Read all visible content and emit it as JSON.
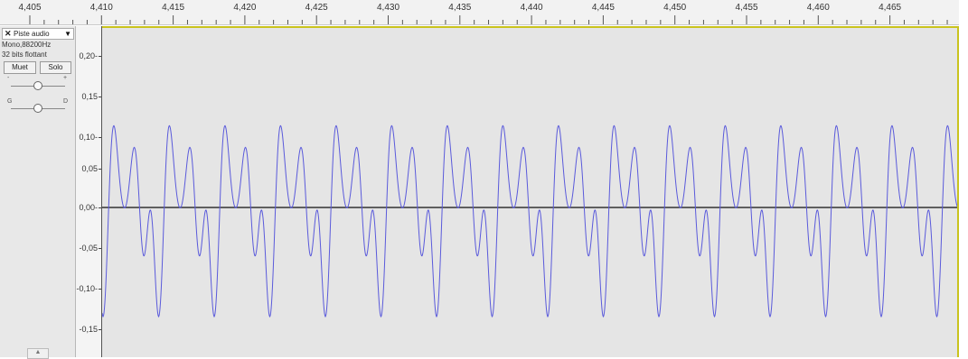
{
  "ruler": {
    "labels": [
      "4,405",
      "4,410",
      "4,415",
      "4,420",
      "4,425",
      "4,430",
      "4,435",
      "4,440",
      "4,445",
      "4,450",
      "4,455",
      "4,460",
      "4,465"
    ]
  },
  "track": {
    "close_icon": "close-icon",
    "name": "Piste audio",
    "menu_icon": "dropdown-arrow-icon",
    "format": "Mono,88200Hz",
    "bits": "32 bits flottant",
    "mute_label": "Muet",
    "solo_label": "Solo",
    "gain_minus": "-",
    "gain_plus": "+",
    "pan_left": "G",
    "pan_right": "D",
    "collapse_icon": "collapse-arrow-icon"
  },
  "y_axis": {
    "labels": [
      "0,20-",
      "0,15",
      "0,10-",
      "0,05",
      "0,00-",
      "-0,05",
      "-0,10-",
      "-0,15"
    ]
  },
  "waveform": {
    "color": "#5a5adb",
    "centerline_color": "#333333",
    "background": "#e5e5e5",
    "selection_border": "#c9c31d"
  }
}
